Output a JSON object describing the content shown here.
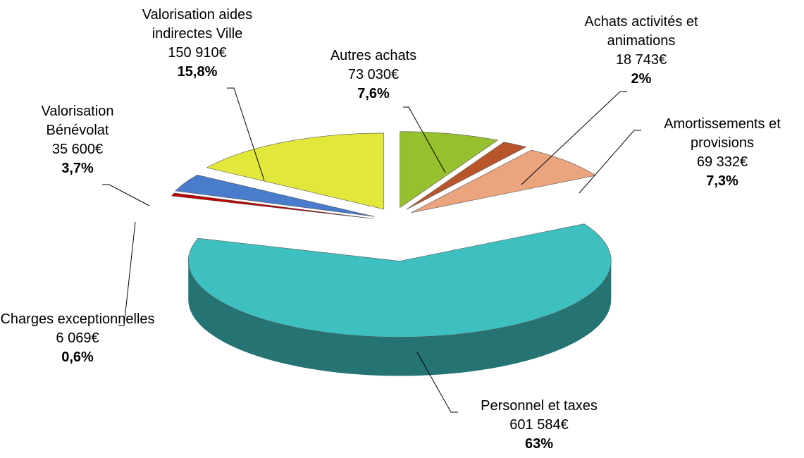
{
  "chart_data": {
    "type": "pie",
    "categories": [
      "Autres achats",
      "Achats activités et animations",
      "Amortissements et provisions",
      "Personnel et taxes",
      "Charges exceptionnelles",
      "Valorisation Bénévolat",
      "Valorisation aides indirectes Ville"
    ],
    "values": [
      73030,
      18743,
      69332,
      601584,
      6069,
      35600,
      150910
    ],
    "value_labels": [
      "73 030€",
      "18 743€",
      "69 332€",
      "601 584€",
      "6 069€",
      "35 600€",
      "150 910€"
    ],
    "percents": [
      7.6,
      2,
      7.3,
      63,
      0.6,
      3.7,
      15.8
    ],
    "percent_labels": [
      "7,6%",
      "2%",
      "7,3%",
      "63%",
      "0,6%",
      "3,7%",
      "15,8%"
    ],
    "colors": [
      "#96c02e",
      "#b9552a",
      "#eaa47e",
      "#3fc0c0",
      "#c00000",
      "#4a7ccc",
      "#e2e83a"
    ]
  }
}
